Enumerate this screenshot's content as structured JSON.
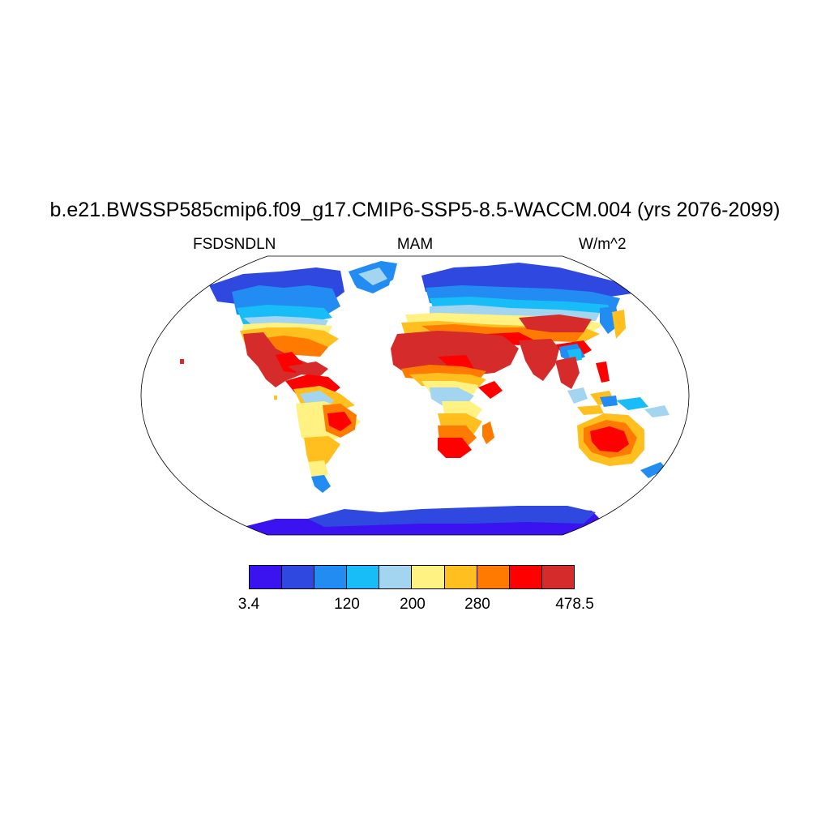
{
  "title": "b.e21.BWSSP585cmip6.f09_g17.CMIP6-SSP5-8.5-WACCM.004 (yrs 2076-2099)",
  "left_label": "FSDSNDLN",
  "center_label": "MAM",
  "right_label": "W/m^2",
  "projection": "Robinson",
  "colorbar": {
    "colors": [
      "#3b12f0",
      "#2e48e0",
      "#228cf2",
      "#18bcf7",
      "#a3d5f1",
      "#fff282",
      "#ffbf1f",
      "#ff7a00",
      "#ff0000",
      "#d52b2b"
    ],
    "tick_labels": [
      "3.4",
      "120",
      "200",
      "280",
      "478.5"
    ]
  }
}
